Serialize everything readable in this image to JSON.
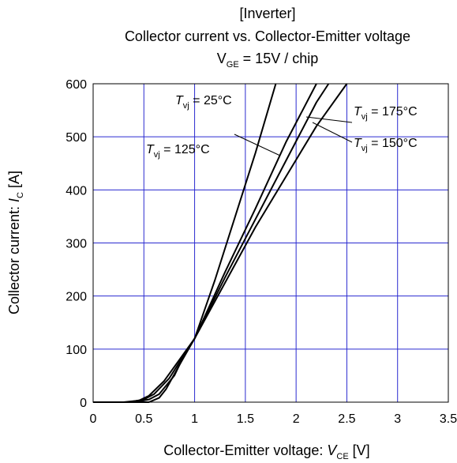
{
  "chart_data": {
    "type": "line",
    "title_lines": [
      "[Inverter]",
      "Collector current vs. Collector-Emitter voltage"
    ],
    "condition": {
      "main": "V",
      "sub": "GE",
      "rest": " = 15V / chip"
    },
    "xlabel": {
      "main": "Collector-Emitter voltage: ",
      "var": "V",
      "sub": "CE",
      "unit": " [V]"
    },
    "ylabel": {
      "main": "Collector current: ",
      "var": "I",
      "sub": "C",
      "unit": " [A]"
    },
    "xlim": [
      0,
      3.5
    ],
    "ylim": [
      0,
      600
    ],
    "xticks": [
      0,
      0.5,
      1,
      1.5,
      2,
      2.5,
      3,
      3.5
    ],
    "xtick_labels": [
      "0",
      "0.5",
      "1",
      "1.5",
      "2",
      "2.5",
      "3",
      "3.5"
    ],
    "yticks": [
      0,
      100,
      200,
      300,
      400,
      500,
      600
    ],
    "ytick_labels": [
      "0",
      "100",
      "200",
      "300",
      "400",
      "500",
      "600"
    ],
    "grid": true,
    "grid_color": "#2a2ad0",
    "line_color": "#000000",
    "series": [
      {
        "name": "Tvj = 25°C",
        "x": [
          0,
          0.3,
          0.45,
          0.55,
          0.7,
          0.85,
          1.0,
          1.2,
          1.4,
          1.6,
          1.8
        ],
        "y": [
          0,
          0,
          3,
          12,
          40,
          80,
          120,
          230,
          350,
          470,
          600
        ]
      },
      {
        "name": "Tvj = 125°C",
        "x": [
          0,
          0.35,
          0.5,
          0.6,
          0.75,
          0.9,
          1.0,
          1.3,
          1.6,
          1.9,
          2.2
        ],
        "y": [
          0,
          0,
          5,
          15,
          45,
          90,
          120,
          245,
          365,
          490,
          600
        ]
      },
      {
        "name": "Tvj = 150°C",
        "x": [
          0,
          0.4,
          0.55,
          0.65,
          0.8,
          0.9,
          1.0,
          1.3,
          1.6,
          1.9,
          2.2,
          2.32
        ],
        "y": [
          0,
          0,
          5,
          15,
          50,
          90,
          120,
          235,
          345,
          455,
          565,
          600
        ]
      },
      {
        "name": "Tvj = 175°C",
        "x": [
          0,
          0.55,
          0.65,
          0.72,
          0.85,
          1.0,
          1.3,
          1.6,
          1.9,
          2.2,
          2.5
        ],
        "y": [
          0,
          0,
          8,
          25,
          70,
          120,
          225,
          330,
          425,
          520,
          600
        ]
      }
    ],
    "annotations": [
      {
        "var": "T",
        "sub": "vj",
        "rest": " = 25°C"
      },
      {
        "var": "T",
        "sub": "vj",
        "rest": " = 125°C"
      },
      {
        "var": "T",
        "sub": "vj",
        "rest": " = 175°C"
      },
      {
        "var": "T",
        "sub": "vj",
        "rest": " = 150°C"
      }
    ]
  }
}
